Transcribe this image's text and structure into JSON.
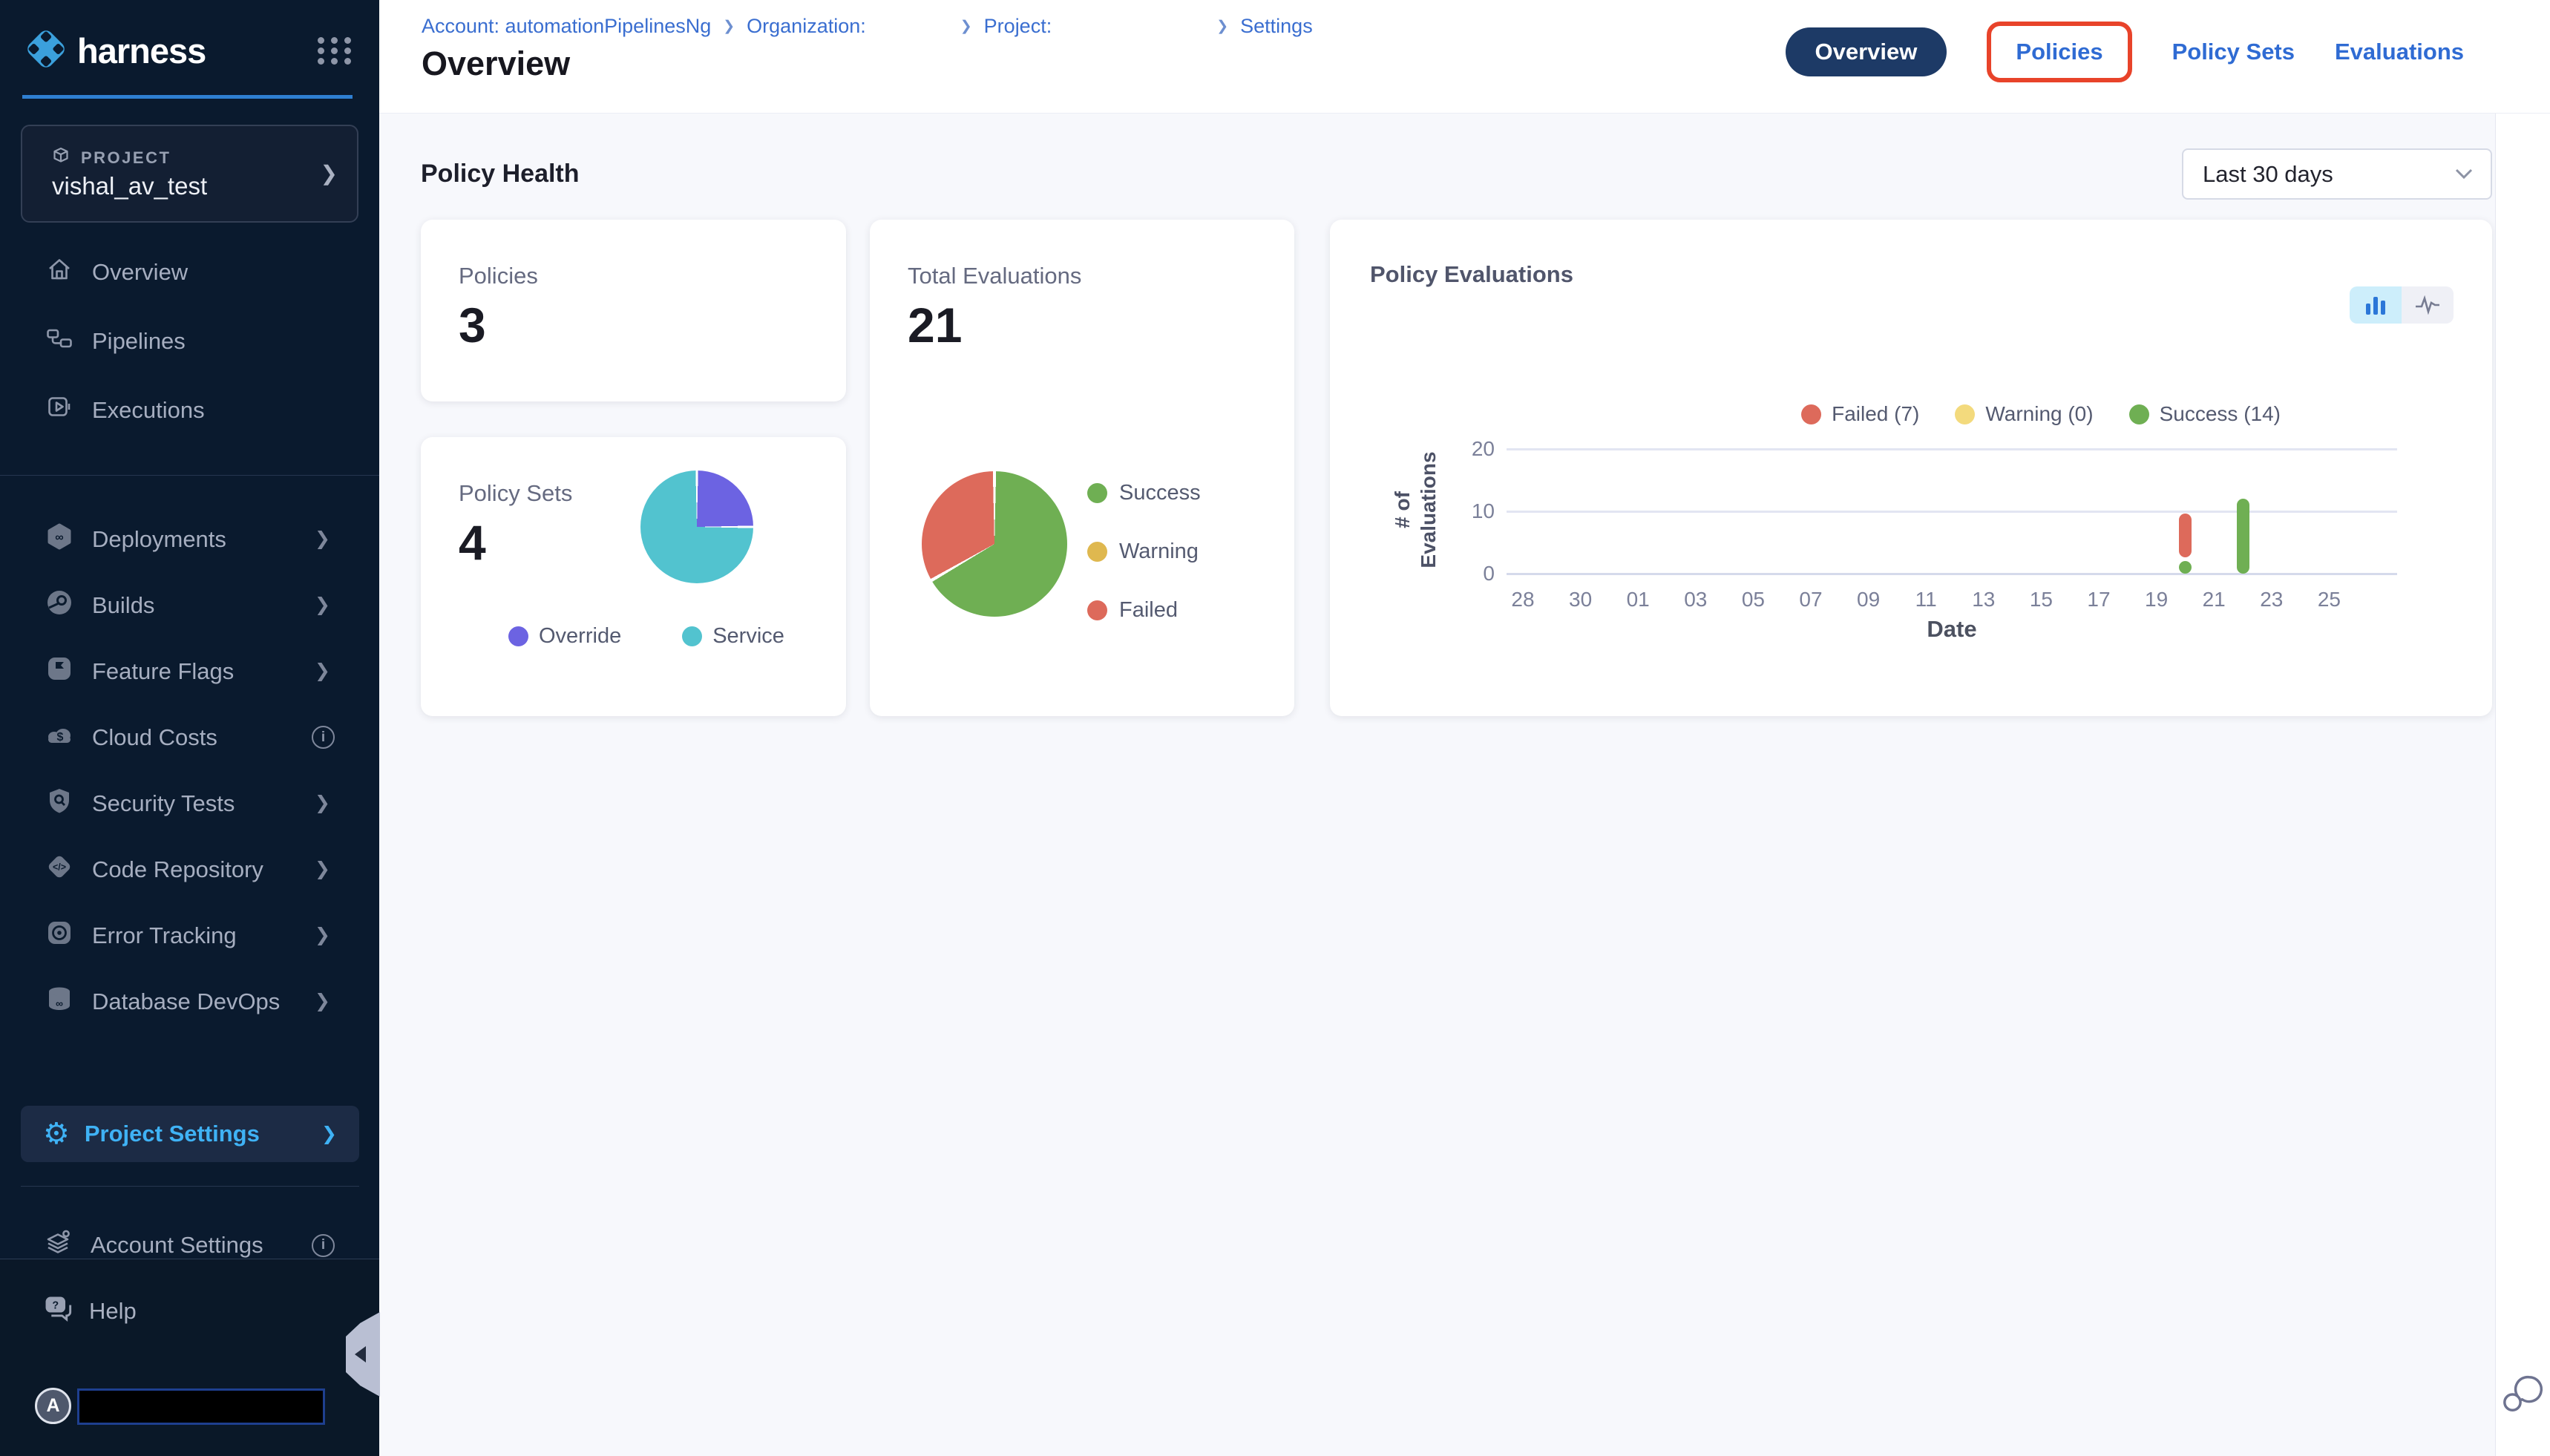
{
  "app": {
    "logo_text": "harness"
  },
  "sidebar": {
    "project_label": "PROJECT",
    "project_name": "vishal_av_test",
    "nav_top": [
      {
        "label": "Overview"
      },
      {
        "label": "Pipelines"
      },
      {
        "label": "Executions"
      }
    ],
    "modules": [
      {
        "label": "Deployments"
      },
      {
        "label": "Builds"
      },
      {
        "label": "Feature Flags"
      },
      {
        "label": "Cloud Costs"
      },
      {
        "label": "Security Tests"
      },
      {
        "label": "Code Repository"
      },
      {
        "label": "Error Tracking"
      },
      {
        "label": "Database DevOps"
      }
    ],
    "project_settings_label": "Project Settings",
    "account_settings_label": "Account Settings",
    "help_label": "Help",
    "avatar_letter": "A"
  },
  "header": {
    "breadcrumb": [
      {
        "text": "Account: automationPipelinesNg"
      },
      {
        "text": "Organization:"
      },
      {
        "text": "Project:"
      },
      {
        "text": "Settings"
      }
    ],
    "title": "Overview",
    "tabs": [
      {
        "label": "Overview",
        "active": true
      },
      {
        "label": "Policies",
        "annotated": true
      },
      {
        "label": "Policy Sets"
      },
      {
        "label": "Evaluations"
      }
    ]
  },
  "content": {
    "section_title": "Policy Health",
    "date_filter_value": "Last 30 days",
    "policies_card": {
      "label": "Policies",
      "value": "3"
    },
    "total_evaluations_card": {
      "label": "Total Evaluations",
      "value": "21"
    },
    "policy_sets_card": {
      "label": "Policy Sets",
      "value": "4"
    },
    "policy_evaluations_card": {
      "title": "Policy Evaluations"
    }
  },
  "chart_data": [
    {
      "type": "pie",
      "title": "Total Evaluations",
      "labels": [
        "Success",
        "Warning",
        "Failed"
      ],
      "values": [
        14,
        0,
        7
      ],
      "colors": [
        "#6faf53",
        "#dfb84f",
        "#dd6a5b"
      ],
      "slices": [
        {
          "label": "Success",
          "value": 14,
          "color": "#6faf53"
        },
        {
          "label": "Failed",
          "value": 7,
          "color": "#dd6a5b"
        }
      ],
      "legend": [
        {
          "label": "Success",
          "color": "#6faf53"
        },
        {
          "label": "Warning",
          "color": "#dfb84f"
        },
        {
          "label": "Failed",
          "color": "#dd6a5b"
        }
      ],
      "legend_position": "right"
    },
    {
      "type": "pie",
      "title": "Policy Sets",
      "labels": [
        "Override",
        "Service"
      ],
      "values": [
        1,
        3
      ],
      "colors": [
        "#6c63e2",
        "#52c3cf"
      ],
      "slices": [
        {
          "label": "Override",
          "value": 1,
          "color": "#6c63e2"
        },
        {
          "label": "Service",
          "value": 3,
          "color": "#52c3cf"
        }
      ],
      "legend": [
        {
          "label": "Override",
          "color": "#6c63e2"
        },
        {
          "label": "Service",
          "color": "#52c3cf"
        }
      ],
      "legend_position": "bottom"
    },
    {
      "type": "bar",
      "title": "Policy Evaluations",
      "xlabel": "Date",
      "ylabel_lines": [
        "# of",
        "Evaluations"
      ],
      "ylim": [
        0,
        20
      ],
      "y_ticks": [
        0,
        10,
        20
      ],
      "x_ticks": [
        "28",
        "30",
        "01",
        "03",
        "05",
        "07",
        "09",
        "11",
        "13",
        "15",
        "17",
        "19",
        "21",
        "23",
        "25"
      ],
      "legend": [
        {
          "label": "Failed (7)",
          "color": "#dd6a5b"
        },
        {
          "label": "Warning (0)",
          "color": "#f3da7d"
        },
        {
          "label": "Success (14)",
          "color": "#6faf53"
        }
      ],
      "bars": [
        {
          "date": "20",
          "tick_pos": 11.5,
          "segments": [
            {
              "name": "Success",
              "value": 2,
              "color": "#6faf53"
            },
            {
              "name": "Failed",
              "value": 7,
              "color": "#dd6a5b"
            }
          ]
        },
        {
          "date": "22",
          "tick_pos": 12.5,
          "segments": [
            {
              "name": "Success",
              "value": 12,
              "color": "#6faf53"
            }
          ]
        }
      ]
    }
  ],
  "colors": {
    "sidebar_bg": "#0a1a2e",
    "accent_blue": "#2f6bd3",
    "active_tab_bg": "#1d3a66",
    "annotation_red": "#e8432a",
    "sidebar_active": "#3fb2f5",
    "success": "#6faf53",
    "warning": "#f3da7d",
    "failed": "#dd6a5b",
    "override": "#6c63e2",
    "service": "#52c3cf"
  }
}
